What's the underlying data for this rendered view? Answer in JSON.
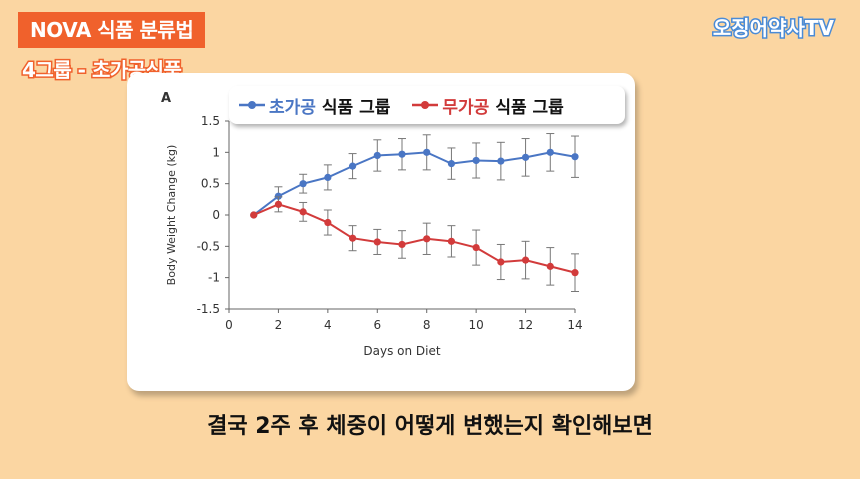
{
  "header": {
    "title": "NOVA 식품 분류법",
    "subtitle": "4그룹 - 초가공식품",
    "channel": "오징어약사TV"
  },
  "caption": "결국 2주 후 체중이 어떻게 변했는지 확인해보면",
  "legend": {
    "series1_highlight": "초가공",
    "series1_rest": "식품 그룹",
    "series2_highlight": "무가공",
    "series2_rest": "식품 그룹"
  },
  "colors": {
    "blue": "#4A76C4",
    "red": "#D23B3B",
    "accent": "#F0612C"
  },
  "chart_data": {
    "type": "line",
    "panel_label": "A",
    "xlabel": "Days on Diet",
    "ylabel": "Body Weight Change (kg)",
    "xlim": [
      0,
      14
    ],
    "ylim": [
      -1.5,
      1.5
    ],
    "xticks": [
      0,
      2,
      4,
      6,
      8,
      10,
      12,
      14
    ],
    "yticks": [
      1.5,
      1,
      0.5,
      0,
      -0.5,
      -1,
      -1.5
    ],
    "x": [
      1,
      2,
      3,
      4,
      5,
      6,
      7,
      8,
      9,
      10,
      11,
      12,
      13,
      14
    ],
    "series": [
      {
        "name": "초가공 식품 그룹",
        "color": "#4A76C4",
        "values": [
          0,
          0.3,
          0.5,
          0.6,
          0.78,
          0.95,
          0.97,
          1.0,
          0.82,
          0.87,
          0.86,
          0.92,
          1.0,
          0.93
        ],
        "errors": [
          0,
          0.15,
          0.15,
          0.2,
          0.2,
          0.25,
          0.25,
          0.28,
          0.25,
          0.28,
          0.3,
          0.3,
          0.3,
          0.33
        ]
      },
      {
        "name": "무가공 식품 그룹",
        "color": "#D23B3B",
        "values": [
          0,
          0.17,
          0.05,
          -0.12,
          -0.37,
          -0.43,
          -0.47,
          -0.38,
          -0.42,
          -0.52,
          -0.75,
          -0.72,
          -0.82,
          -0.92
        ],
        "errors": [
          0,
          0.12,
          0.15,
          0.2,
          0.2,
          0.2,
          0.22,
          0.25,
          0.25,
          0.28,
          0.28,
          0.3,
          0.3,
          0.3
        ]
      }
    ]
  }
}
